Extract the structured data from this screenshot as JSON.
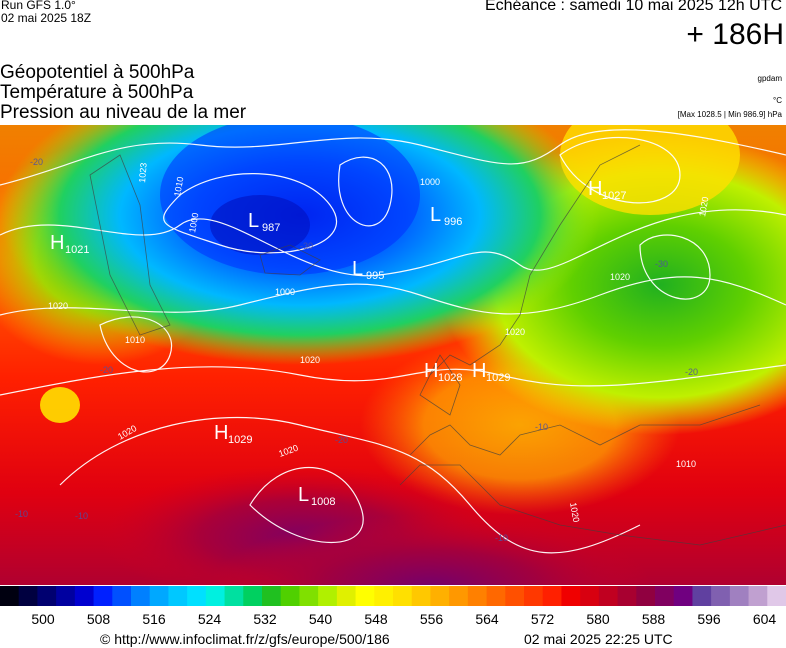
{
  "header": {
    "run_label": "Run GFS 1.0°",
    "run_date": "02 mai 2025 18Z",
    "echeance": "Echéance : samedi 10 mai 2025 12h UTC",
    "lead_time": "+ 186H"
  },
  "titles": {
    "line1": "Géopotentiel à 500hPa",
    "line2": "Température à 500hPa",
    "line3": "Pression au niveau de la mer"
  },
  "units": {
    "geopotential": "gpdam",
    "temperature": "°C",
    "pressure_range": "[Max 1028.5 | Min 986.9] hPa"
  },
  "map": {
    "centers": [
      {
        "type": "H",
        "value": "1021"
      },
      {
        "type": "L",
        "value": "987"
      },
      {
        "type": "L",
        "value": "996"
      },
      {
        "type": "L",
        "value": "995"
      },
      {
        "type": "H",
        "value": "1027"
      },
      {
        "type": "H",
        "value": "1028"
      },
      {
        "type": "H",
        "value": "1029"
      },
      {
        "type": "H",
        "value": "1029"
      },
      {
        "type": "L",
        "value": "1008"
      }
    ],
    "isobar_labels": [
      "1000",
      "1000",
      "1000",
      "1010",
      "1010",
      "1010",
      "1020",
      "1020",
      "1020",
      "1020",
      "1020",
      "1020",
      "1020",
      "1020",
      "1023"
    ],
    "temp_labels": [
      "-20",
      "-30",
      "-20",
      "-10",
      "-10",
      "-10",
      "-10",
      "-20",
      "-30",
      "-20"
    ]
  },
  "colorbar": {
    "ticks": [
      "500",
      "508",
      "516",
      "524",
      "532",
      "540",
      "548",
      "556",
      "564",
      "572",
      "580",
      "588",
      "596",
      "604"
    ],
    "colors": [
      "#000010",
      "#000040",
      "#000070",
      "#0000a0",
      "#0000d0",
      "#0020ff",
      "#0050ff",
      "#0080ff",
      "#00a8ff",
      "#00c8ff",
      "#00e0ff",
      "#00f0e0",
      "#00e0a0",
      "#00d060",
      "#20c020",
      "#50d000",
      "#80e000",
      "#b0f000",
      "#e0f000",
      "#ffff00",
      "#fff000",
      "#ffe000",
      "#ffc800",
      "#ffb000",
      "#ff9800",
      "#ff8000",
      "#ff6800",
      "#ff5000",
      "#ff3800",
      "#ff2000",
      "#f00000",
      "#d80010",
      "#c00020",
      "#a80030",
      "#900040",
      "#800060",
      "#700080",
      "#6040a0",
      "#8060b0",
      "#a080c0",
      "#c0a0d0",
      "#e0c8e8"
    ]
  },
  "footer": {
    "copyright": "© http://www.infoclimat.fr/z/gfs/europe/500/186",
    "generated": "02 mai 2025 22:25 UTC"
  }
}
